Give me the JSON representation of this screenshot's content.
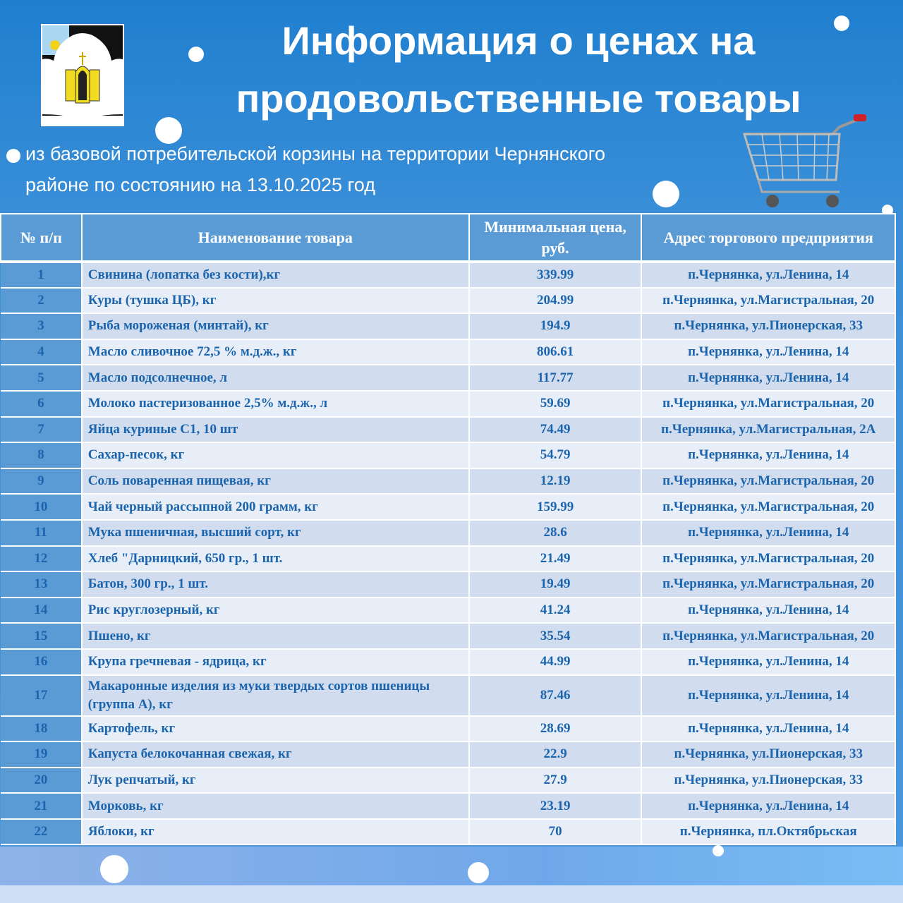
{
  "header": {
    "title_line1": "Информация о  ценах на",
    "title_line2": "продовольственные товары",
    "subtitle_line1": "из базовой потребительской корзины на территории Чернянского",
    "subtitle_line2": "районе по состоянию на 13.10.2025 год"
  },
  "table": {
    "columns": [
      "№ п/п",
      "Наименование товара",
      "Минимальная цена, руб.",
      "Адрес торгового предприятия"
    ],
    "rows": [
      [
        "1",
        "Свинина (лопатка без кости),кг",
        "339.99",
        "п.Чернянка, ул.Ленина, 14"
      ],
      [
        "2",
        "Куры (тушка ЦБ), кг",
        "204.99",
        "п.Чернянка, ул.Магистральная, 20"
      ],
      [
        "3",
        "Рыба мороженая (минтай), кг",
        "194.9",
        "п.Чернянка, ул.Пионерская, 33"
      ],
      [
        "4",
        "Масло сливочное 72,5 % м.д.ж., кг",
        "806.61",
        "п.Чернянка, ул.Ленина, 14"
      ],
      [
        "5",
        "Масло подсолнечное, л",
        "117.77",
        "п.Чернянка, ул.Ленина, 14"
      ],
      [
        "6",
        "Молоко пастеризованное 2,5% м.д.ж., л",
        "59.69",
        "п.Чернянка, ул.Магистральная, 20"
      ],
      [
        "7",
        "Яйца куриные С1, 10 шт",
        "74.49",
        "п.Чернянка, ул.Магистральная, 2А"
      ],
      [
        "8",
        "Сахар-песок, кг",
        "54.79",
        "п.Чернянка, ул.Ленина, 14"
      ],
      [
        "9",
        "Соль поваренная пищевая, кг",
        "12.19",
        "п.Чернянка, ул.Магистральная, 20"
      ],
      [
        "10",
        "Чай черный рассыпной 200 грамм, кг",
        "159.99",
        "п.Чернянка, ул.Магистральная, 20"
      ],
      [
        "11",
        "Мука пшеничная, высший сорт, кг",
        "28.6",
        "п.Чернянка, ул.Ленина, 14"
      ],
      [
        "12",
        "Хлеб \"Дарницкий, 650 гр., 1 шт.",
        "21.49",
        "п.Чернянка, ул.Магистральная, 20"
      ],
      [
        "13",
        "Батон, 300 гр., 1 шт.",
        "19.49",
        "п.Чернянка, ул.Магистральная, 20"
      ],
      [
        "14",
        "Рис круглозерный, кг",
        "41.24",
        "п.Чернянка, ул.Ленина, 14"
      ],
      [
        "15",
        "Пшено, кг",
        "35.54",
        "п.Чернянка, ул.Магистральная, 20"
      ],
      [
        "16",
        "Крупа гречневая - ядрица, кг",
        "44.99",
        "п.Чернянка, ул.Ленина, 14"
      ],
      [
        "17",
        "Макаронные изделия из муки твердых сортов пшеницы (группа А), кг",
        "87.46",
        "п.Чернянка, ул.Ленина, 14"
      ],
      [
        "18",
        "Картофель, кг",
        "28.69",
        "п.Чернянка, ул.Ленина, 14"
      ],
      [
        "19",
        "Капуста белокочанная свежая, кг",
        "22.9",
        "п.Чернянка, ул.Пионерская, 33"
      ],
      [
        "20",
        "Лук репчатый, кг",
        "27.9",
        "п.Чернянка, ул.Пионерская, 33"
      ],
      [
        "21",
        "Морковь, кг",
        "23.19",
        "п.Чернянка, ул.Ленина, 14"
      ],
      [
        "22",
        "Яблоки, кг",
        "70",
        "п.Чернянка, пл.Октябрьская"
      ]
    ]
  },
  "icons": {
    "logo": "coat-of-arms",
    "cart": "shopping-cart-icon"
  }
}
